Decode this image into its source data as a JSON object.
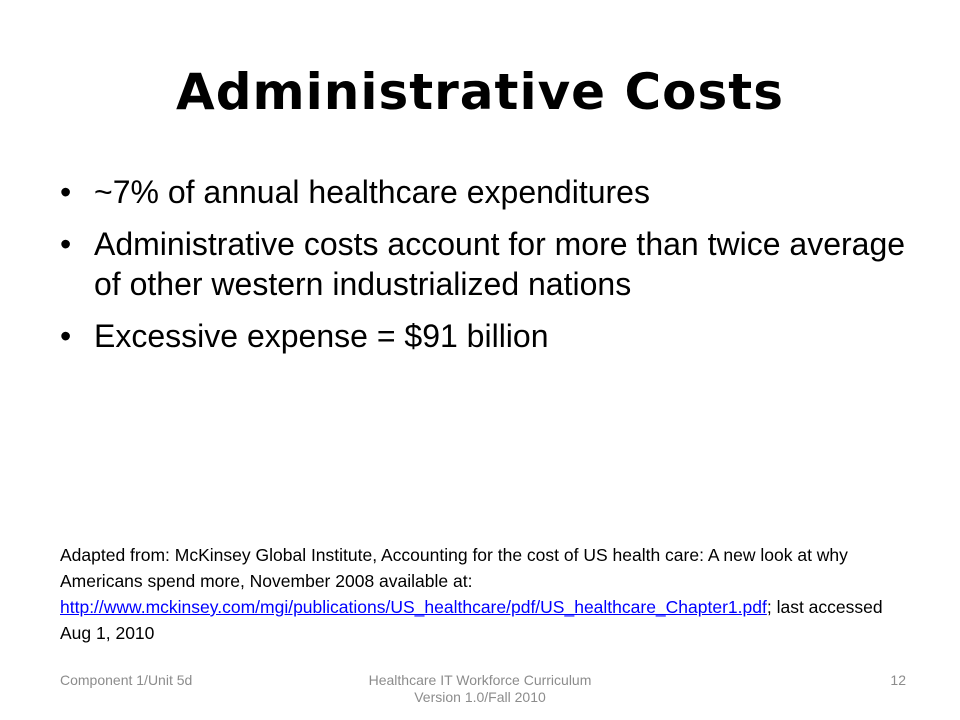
{
  "slide": {
    "title": "Administrative Costs",
    "bullets": [
      "~7% of annual healthcare expenditures",
      "Administrative costs account for more than twice average of other western industrialized nations",
      "Excessive expense = $91 billion"
    ],
    "bullet_glyph": "•",
    "citation": {
      "prefix": "Adapted from: McKinsey Global Institute,  Accounting for the cost of US health care: A new look at why Americans spend more, November 2008 available at: ",
      "link_text": "http://www.mckinsey.com/mgi/publications/US_healthcare/pdf/US_healthcare_Chapter1.pdf",
      "suffix": "; last accessed Aug 1, 2010"
    },
    "footer": {
      "left": "Component 1/Unit 5d",
      "center_line1": "Healthcare IT Workforce Curriculum",
      "center_line2": "Version 1.0/Fall 2010",
      "page_number": "12"
    },
    "colors": {
      "text": "#000000",
      "link": "#0000ff",
      "footer": "#8c8c8c",
      "background": "#ffffff"
    }
  }
}
